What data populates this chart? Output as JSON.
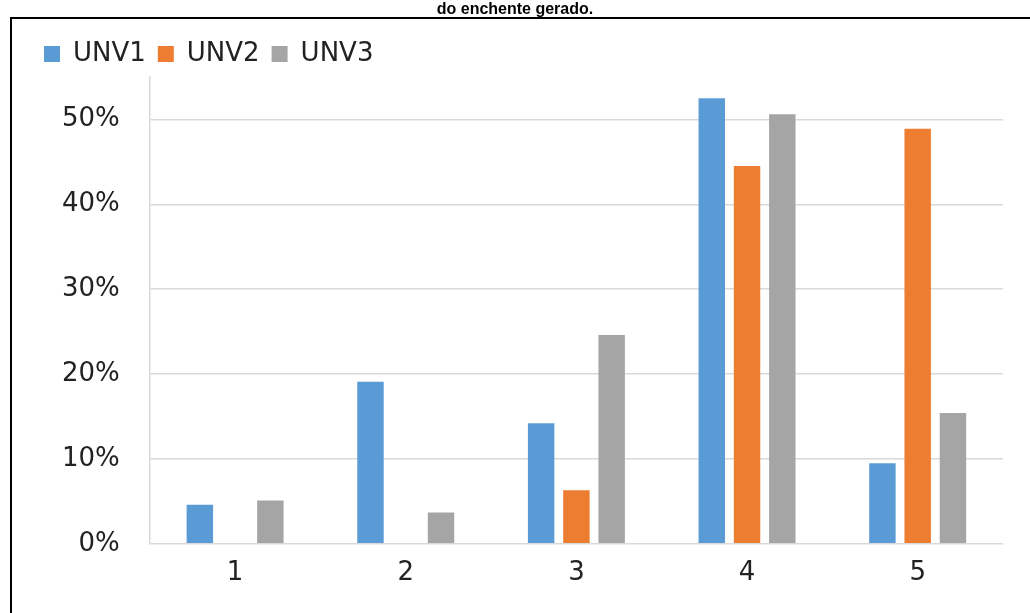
{
  "chart_data": {
    "type": "bar",
    "title": "do enchente gerado.",
    "categories": [
      "1",
      "2",
      "3",
      "4",
      "5"
    ],
    "series": [
      {
        "name": "UNV1",
        "color": "#5b9bd5",
        "values": [
          4.6,
          19.1,
          14.2,
          52.5,
          9.5
        ]
      },
      {
        "name": "UNV2",
        "color": "#ed7d31",
        "values": [
          0,
          0,
          6.3,
          44.5,
          48.9
        ]
      },
      {
        "name": "UNV3",
        "color": "#a5a5a5",
        "values": [
          5.1,
          3.7,
          24.6,
          50.6,
          15.4
        ]
      }
    ],
    "ylim": [
      0,
      55
    ],
    "yticks": [
      {
        "value": 0,
        "label": "0%"
      },
      {
        "value": 10,
        "label": "10%"
      },
      {
        "value": 20,
        "label": "20%"
      },
      {
        "value": 30,
        "label": "30%"
      },
      {
        "value": 40,
        "label": "40%"
      },
      {
        "value": 50,
        "label": "50%"
      }
    ],
    "grid": "y",
    "legend": "top left"
  }
}
